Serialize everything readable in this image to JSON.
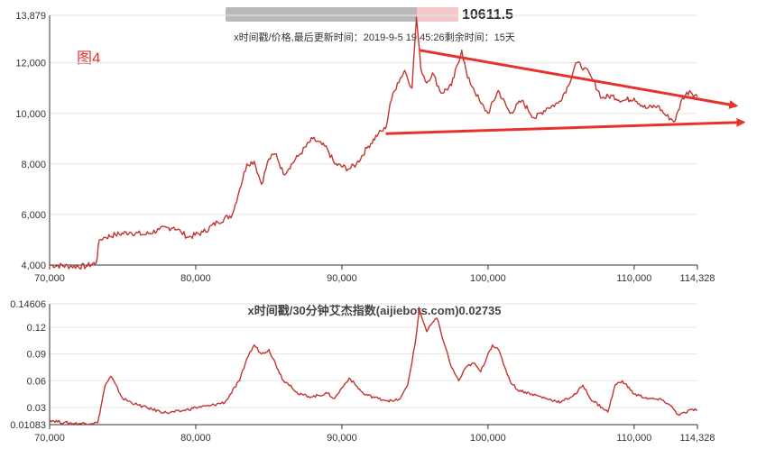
{
  "chart_data": [
    {
      "type": "line",
      "title": "10611.5",
      "subtitle": "x时间戳/价格,最后更新时间：2019-9-5 19:45:26剩余时间：15天",
      "annotation": "图4",
      "accent_color": "#c23531",
      "arrow_color": "#e5322d",
      "xlim": [
        70000,
        114328
      ],
      "ylim": [
        4000,
        13879
      ],
      "x_ticks": [
        "70,000",
        "80,000",
        "90,000",
        "100,000",
        "110,000",
        "114,328"
      ],
      "y_ticks": [
        "4,000",
        "6,000",
        "8,000",
        "10,000",
        "12,000",
        "13,879"
      ],
      "x_tick_values": [
        70000,
        80000,
        90000,
        100000,
        110000,
        114328
      ],
      "y_tick_values": [
        4000,
        6000,
        8000,
        10000,
        12000,
        13879
      ],
      "series": [
        {
          "x": [
            70000,
            71500,
            72500,
            73200,
            73400,
            73800,
            74500,
            75500,
            76500,
            77500,
            78500,
            79000,
            79500,
            80500,
            81500,
            82500,
            83000,
            83500,
            84000,
            84500,
            85000,
            85500,
            86000,
            87000,
            88000,
            89000,
            89500,
            90500,
            91000,
            91800,
            92500,
            93000,
            93300,
            93800,
            94300,
            94800,
            95100,
            95400,
            95800,
            96200,
            96800,
            97500,
            98200,
            98600,
            99000,
            99500,
            100000,
            100700,
            101500,
            102300,
            103200,
            104000,
            104800,
            105500,
            106000,
            106600,
            107200,
            107800,
            108500,
            109200,
            110000,
            110800,
            111600,
            112200,
            112800,
            113300,
            113800,
            114328
          ],
          "y": [
            4000,
            3950,
            3950,
            4100,
            5000,
            5100,
            5200,
            5300,
            5200,
            5400,
            5500,
            5300,
            5100,
            5300,
            5700,
            6000,
            7000,
            8000,
            8100,
            7200,
            8200,
            8400,
            7600,
            8300,
            9000,
            8600,
            8000,
            7800,
            8000,
            8700,
            9200,
            9400,
            10400,
            11200,
            11700,
            11000,
            13800,
            11800,
            11200,
            11600,
            10800,
            11100,
            12500,
            11400,
            11000,
            10400,
            10000,
            10900,
            10000,
            10500,
            9800,
            10200,
            10400,
            11100,
            12000,
            11800,
            11300,
            10600,
            10700,
            10500,
            10600,
            10200,
            10300,
            9900,
            9700,
            10600,
            10900,
            10650
          ]
        }
      ],
      "trendlines": [
        {
          "from": [
            95300,
            12500
          ],
          "to": [
            117000,
            10300
          ]
        },
        {
          "from": [
            93000,
            9200
          ],
          "to": [
            117500,
            9650
          ]
        }
      ]
    },
    {
      "type": "line",
      "title": "x时间戳/30分钟艾杰指数(aijiebots.com)0.02735",
      "accent_color": "#c23531",
      "xlim": [
        70000,
        114328
      ],
      "ylim": [
        0.01083,
        0.14606
      ],
      "x_ticks": [
        "70,000",
        "80,000",
        "90,000",
        "100,000",
        "110,000",
        "114,328"
      ],
      "y_ticks": [
        "0.01083",
        "0.03",
        "0.06",
        "0.09",
        "0.12",
        "0.14606"
      ],
      "x_tick_values": [
        70000,
        80000,
        90000,
        100000,
        110000,
        114328
      ],
      "y_tick_values": [
        0.01083,
        0.03,
        0.06,
        0.09,
        0.12,
        0.14606
      ],
      "series": [
        {
          "x": [
            70000,
            71000,
            72000,
            73300,
            73500,
            73800,
            74200,
            75000,
            76000,
            77000,
            78000,
            79000,
            80000,
            81000,
            82000,
            83000,
            83500,
            84000,
            84500,
            85000,
            86000,
            86500,
            87000,
            88000,
            89000,
            89500,
            90000,
            90500,
            91500,
            92500,
            93500,
            94000,
            94500,
            95000,
            95300,
            95800,
            96200,
            96500,
            97000,
            97500,
            98000,
            98500,
            99000,
            99500,
            100000,
            100300,
            100700,
            101500,
            102000,
            103000,
            104000,
            105000,
            106000,
            106500,
            107000,
            107800,
            108200,
            108700,
            109200,
            110000,
            111000,
            112000,
            112500,
            113000,
            113500,
            114000,
            114328
          ],
          "y": [
            0.016,
            0.013,
            0.012,
            0.013,
            0.03,
            0.055,
            0.065,
            0.04,
            0.033,
            0.028,
            0.024,
            0.026,
            0.03,
            0.032,
            0.036,
            0.06,
            0.085,
            0.1,
            0.09,
            0.095,
            0.06,
            0.055,
            0.045,
            0.042,
            0.046,
            0.04,
            0.052,
            0.063,
            0.045,
            0.04,
            0.037,
            0.04,
            0.055,
            0.1,
            0.14,
            0.115,
            0.125,
            0.13,
            0.102,
            0.075,
            0.06,
            0.075,
            0.08,
            0.07,
            0.09,
            0.1,
            0.095,
            0.06,
            0.05,
            0.045,
            0.04,
            0.036,
            0.045,
            0.055,
            0.04,
            0.03,
            0.025,
            0.055,
            0.06,
            0.045,
            0.04,
            0.038,
            0.032,
            0.022,
            0.024,
            0.028,
            0.027
          ]
        }
      ]
    }
  ]
}
